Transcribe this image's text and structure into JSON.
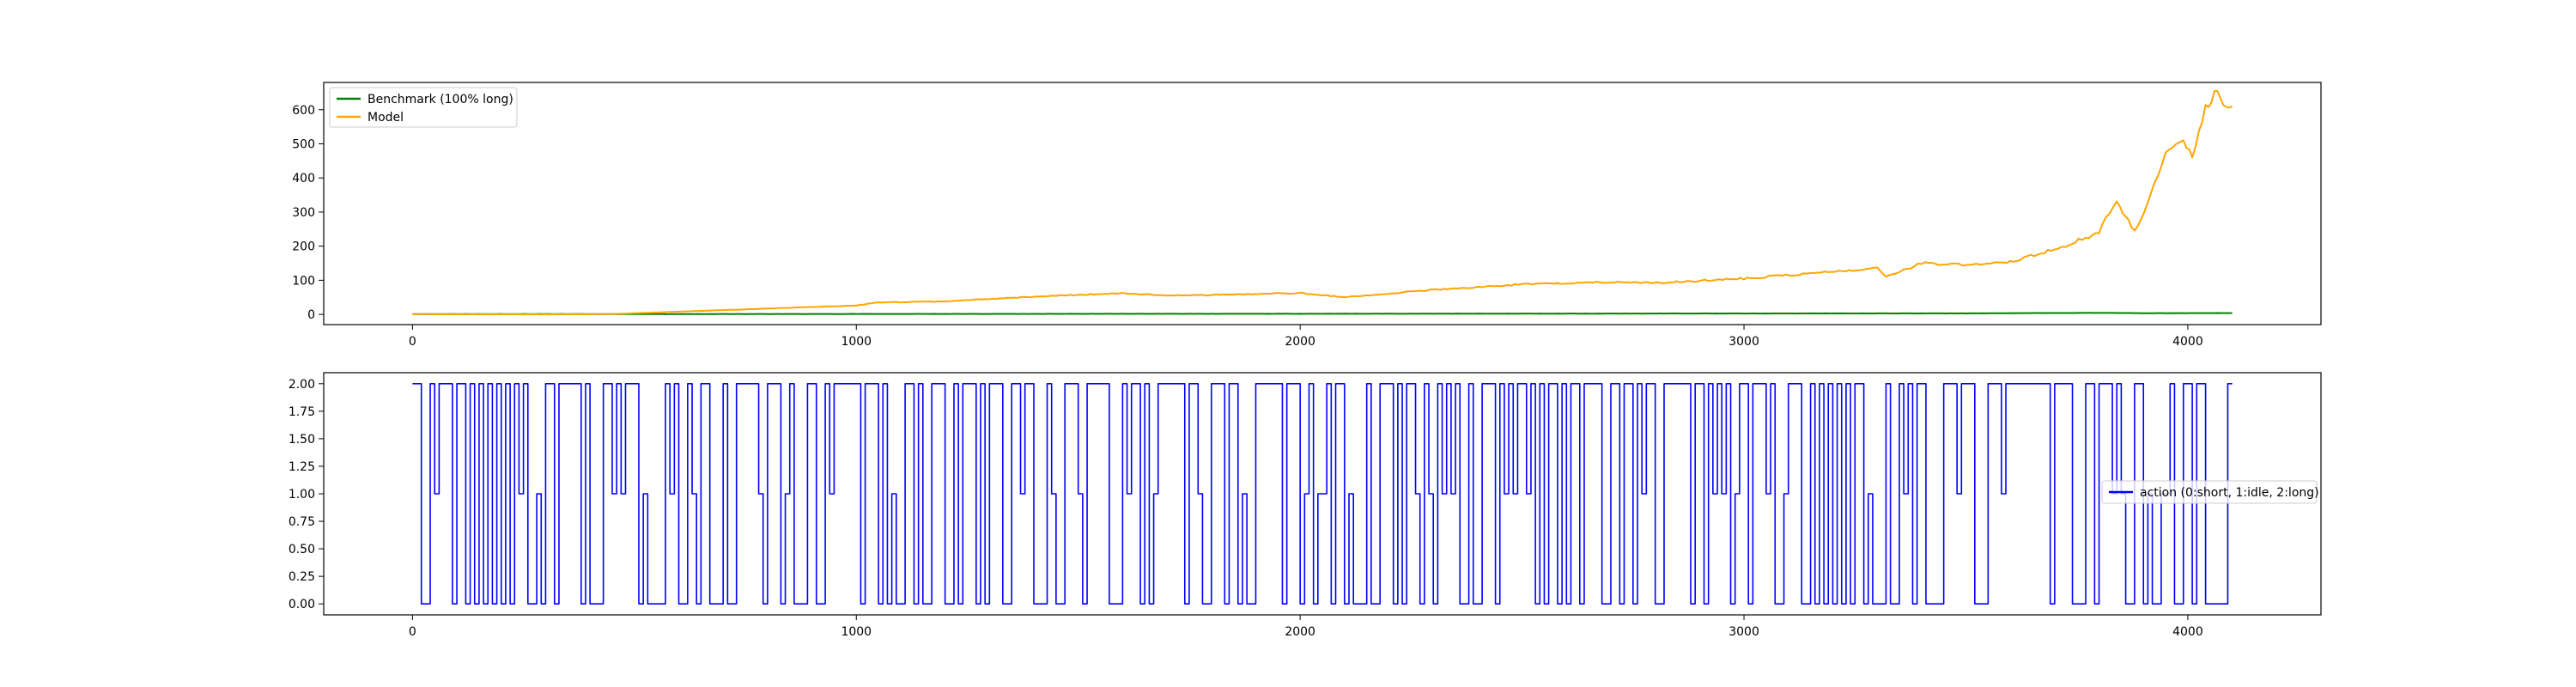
{
  "chart_data": [
    {
      "type": "line",
      "xlim": [
        -200,
        4300
      ],
      "ylim": [
        -30,
        680
      ],
      "xticks": [
        0,
        1000,
        2000,
        3000,
        4000
      ],
      "yticks": [
        0,
        100,
        200,
        300,
        400,
        500,
        600
      ],
      "xtick_labels": [
        "0",
        "1000",
        "2000",
        "3000",
        "4000"
      ],
      "ytick_labels": [
        "0",
        "100",
        "200",
        "300",
        "400",
        "500",
        "600"
      ],
      "grid": false,
      "legend_position": "upper-left",
      "series": [
        {
          "name": "Benchmark (100% long)",
          "color": "#008000",
          "x": [
            0,
            500,
            1000,
            1500,
            2000,
            2500,
            3000,
            3500,
            3800,
            3900,
            4100
          ],
          "y": [
            1,
            0.8,
            1.2,
            1.5,
            1.8,
            2.2,
            2.6,
            3.0,
            4.5,
            3.5,
            3.8
          ]
        },
        {
          "name": "Model",
          "color": "#ffa500",
          "x": [
            0,
            300,
            450,
            600,
            800,
            1000,
            1050,
            1200,
            1300,
            1450,
            1600,
            1700,
            1850,
            2000,
            2100,
            2300,
            2500,
            2700,
            2800,
            3000,
            3150,
            3300,
            3320,
            3400,
            3500,
            3600,
            3700,
            3800,
            3840,
            3860,
            3880,
            3900,
            3950,
            3990,
            4010,
            4040,
            4060,
            4080,
            4100
          ],
          "y": [
            1,
            0,
            1,
            8,
            17,
            26,
            35,
            38,
            45,
            55,
            62,
            55,
            58,
            63,
            50,
            72,
            88,
            95,
            92,
            105,
            120,
            135,
            110,
            150,
            145,
            155,
            190,
            240,
            340,
            280,
            250,
            290,
            470,
            500,
            460,
            600,
            650,
            620,
            610
          ]
        }
      ]
    },
    {
      "type": "line",
      "xlim": [
        -200,
        4300
      ],
      "ylim": [
        -0.1,
        2.1
      ],
      "xticks": [
        0,
        1000,
        2000,
        3000,
        4000
      ],
      "yticks": [
        0,
        0.25,
        0.5,
        0.75,
        1,
        1.25,
        1.5,
        1.75,
        2
      ],
      "xtick_labels": [
        "0",
        "1000",
        "2000",
        "3000",
        "4000"
      ],
      "ytick_labels": [
        "0.00",
        "0.25",
        "0.50",
        "0.75",
        "1.00",
        "1.25",
        "1.50",
        "1.75",
        "2.00"
      ],
      "grid": false,
      "legend_position": "center-right",
      "series": [
        {
          "name": "action (0:short, 1:idle, 2:long)",
          "color": "#0000ff",
          "x_start": 0,
          "x_end": 4100,
          "levels": [
            0,
            1,
            2
          ],
          "step_count": 410,
          "seed": 7,
          "probabilities": [
            0.3,
            0.12,
            0.58
          ]
        }
      ]
    }
  ]
}
